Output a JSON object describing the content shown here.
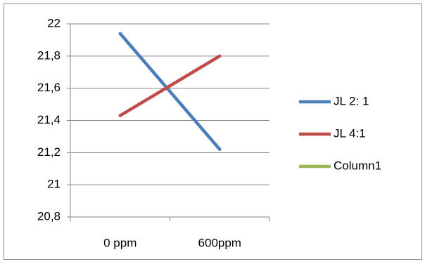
{
  "chart_data": {
    "type": "line",
    "categories": [
      "0 ppm",
      "600ppm"
    ],
    "series": [
      {
        "name": "JL 2: 1",
        "color": "#4a7ebb",
        "values": [
          21.94,
          21.22
        ]
      },
      {
        "name": "JL 4:1",
        "color": "#be4b48",
        "values": [
          21.43,
          21.8
        ]
      },
      {
        "name": "Column1",
        "color": "#98b954",
        "values": [
          null,
          null
        ]
      }
    ],
    "ylim": [
      20.8,
      22
    ],
    "yticks": [
      {
        "value": 20.8,
        "label": "20,8"
      },
      21,
      {
        "value": 21.2,
        "label": "21,2"
      },
      {
        "value": 21.4,
        "label": "21,4"
      },
      {
        "value": 21.6,
        "label": "21,6"
      },
      {
        "value": 21.8,
        "label": "21,8"
      },
      22
    ],
    "grid": true,
    "legend": "right"
  }
}
